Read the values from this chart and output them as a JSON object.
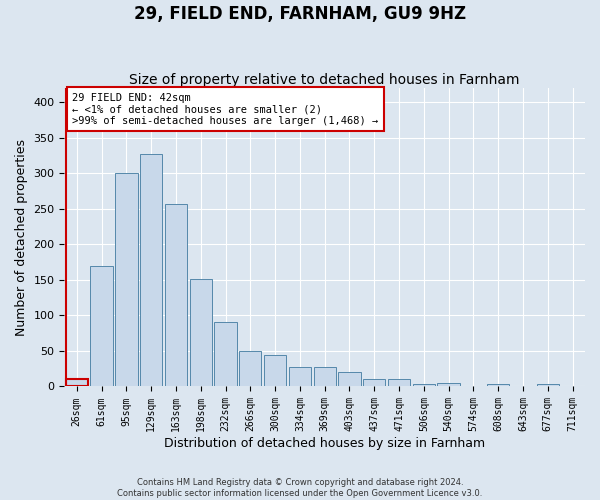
{
  "title": "29, FIELD END, FARNHAM, GU9 9HZ",
  "subtitle": "Size of property relative to detached houses in Farnham",
  "xlabel": "Distribution of detached houses by size in Farnham",
  "ylabel": "Number of detached properties",
  "footer1": "Contains HM Land Registry data © Crown copyright and database right 2024.",
  "footer2": "Contains public sector information licensed under the Open Government Licence v3.0.",
  "bins": [
    "26sqm",
    "61sqm",
    "95sqm",
    "129sqm",
    "163sqm",
    "198sqm",
    "232sqm",
    "266sqm",
    "300sqm",
    "334sqm",
    "369sqm",
    "403sqm",
    "437sqm",
    "471sqm",
    "506sqm",
    "540sqm",
    "574sqm",
    "608sqm",
    "643sqm",
    "677sqm",
    "711sqm"
  ],
  "values": [
    11,
    170,
    300,
    328,
    257,
    152,
    91,
    50,
    44,
    27,
    27,
    20,
    10,
    10,
    4,
    5,
    0,
    3,
    0,
    3,
    0
  ],
  "bar_color": "#c8d8ea",
  "bar_edge_color": "#5588aa",
  "highlight_bar_index": 0,
  "highlight_edge_color": "#cc0000",
  "annotation_line1": "29 FIELD END: 42sqm",
  "annotation_line2": "← <1% of detached houses are smaller (2)",
  "annotation_line3": ">99% of semi-detached houses are larger (1,468) →",
  "ann_box_color": "#cc0000",
  "ylim_max": 420,
  "yticks": [
    0,
    50,
    100,
    150,
    200,
    250,
    300,
    350,
    400
  ],
  "bg_color": "#dce6f0",
  "grid_color": "#ffffff",
  "title_fontsize": 12,
  "subtitle_fontsize": 10,
  "tick_fontsize": 7,
  "ylabel_fontsize": 9,
  "xlabel_fontsize": 9
}
